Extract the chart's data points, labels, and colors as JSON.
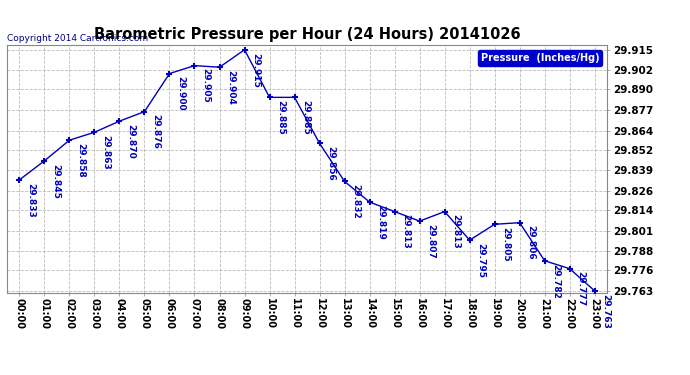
{
  "title": "Barometric Pressure per Hour (24 Hours) 20141026",
  "copyright": "Copyright 2014 Cartronics.com",
  "legend_label": "Pressure  (Inches/Hg)",
  "hours": [
    0,
    1,
    2,
    3,
    4,
    5,
    6,
    7,
    8,
    9,
    10,
    11,
    12,
    13,
    14,
    15,
    16,
    17,
    18,
    19,
    20,
    21,
    22,
    23
  ],
  "x_labels": [
    "00:00",
    "01:00",
    "02:00",
    "03:00",
    "04:00",
    "05:00",
    "06:00",
    "07:00",
    "08:00",
    "09:00",
    "10:00",
    "11:00",
    "12:00",
    "13:00",
    "14:00",
    "15:00",
    "16:00",
    "17:00",
    "18:00",
    "19:00",
    "20:00",
    "21:00",
    "22:00",
    "23:00"
  ],
  "values": [
    29.833,
    29.845,
    29.858,
    29.863,
    29.87,
    29.876,
    29.9,
    29.905,
    29.904,
    29.915,
    29.885,
    29.885,
    29.856,
    29.832,
    29.819,
    29.813,
    29.807,
    29.813,
    29.795,
    29.805,
    29.806,
    29.782,
    29.777,
    29.763
  ],
  "ylim_min": 29.763,
  "ylim_max": 29.915,
  "y_ticks": [
    29.763,
    29.776,
    29.788,
    29.801,
    29.814,
    29.826,
    29.839,
    29.852,
    29.864,
    29.877,
    29.89,
    29.902,
    29.915
  ],
  "line_color": "#0000bb",
  "marker_color": "#0000bb",
  "background_color": "#ffffff",
  "plot_bg_color": "#ffffff",
  "grid_color": "#aaaaaa",
  "title_color": "#000000",
  "label_color": "#0000bb",
  "legend_bg": "#0000cc",
  "legend_text_color": "#ffffff",
  "copyright_color": "#000088"
}
